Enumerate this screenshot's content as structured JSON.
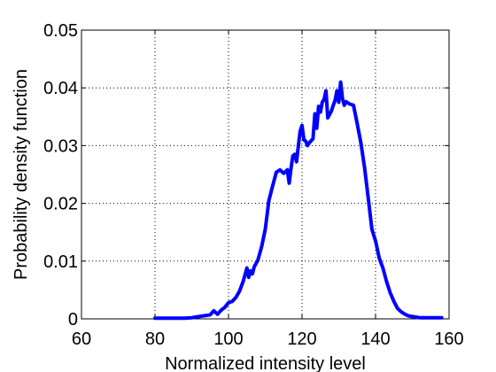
{
  "chart_data": {
    "type": "line",
    "title": "",
    "xlabel": "Normalized intensity level",
    "ylabel": "Probability density function",
    "xlim": [
      60,
      160
    ],
    "ylim": [
      0,
      0.05
    ],
    "xticks": [
      60,
      80,
      100,
      120,
      140,
      160
    ],
    "yticks": [
      0,
      0.01,
      0.02,
      0.03,
      0.04,
      0.05
    ],
    "xtick_labels": [
      "60",
      "80",
      "100",
      "120",
      "140",
      "160"
    ],
    "ytick_labels": [
      "0",
      "0.01",
      "0.02",
      "0.03",
      "0.04",
      "0.05"
    ],
    "grid": true,
    "grid_style": "dotted",
    "legend": "none",
    "series": [
      {
        "color": "#0000ff",
        "x": [
          80,
          85,
          88,
          90,
          91,
          92,
          93,
          94,
          95,
          96,
          97,
          98,
          99,
          100,
          101,
          102,
          103,
          104,
          105,
          105.5,
          106,
          106.5,
          107,
          108,
          109,
          110,
          111,
          112,
          113,
          114,
          115,
          116,
          116.5,
          117,
          117.5,
          118,
          118.5,
          119,
          119.5,
          120,
          120.5,
          121,
          121.5,
          122,
          123,
          123.5,
          124,
          124.5,
          125,
          125.5,
          126,
          126.5,
          127,
          128,
          128.5,
          129,
          129.5,
          130,
          130.5,
          131,
          131.5,
          132,
          133,
          134,
          135,
          136,
          137,
          138,
          139,
          140,
          141,
          142,
          143,
          144,
          145,
          146,
          147,
          148,
          149,
          150,
          152,
          155,
          158
        ],
        "values": [
          0.0001,
          0.0001,
          0.0001,
          0.0002,
          0.0003,
          0.0004,
          0.0005,
          0.0006,
          0.0007,
          0.0014,
          0.0008,
          0.0015,
          0.002,
          0.0028,
          0.003,
          0.0037,
          0.0048,
          0.0065,
          0.0088,
          0.0072,
          0.0083,
          0.0078,
          0.009,
          0.0102,
          0.0125,
          0.0155,
          0.0205,
          0.023,
          0.0254,
          0.0258,
          0.0252,
          0.0258,
          0.0235,
          0.026,
          0.0282,
          0.0285,
          0.0272,
          0.03,
          0.0325,
          0.0335,
          0.031,
          0.0308,
          0.03,
          0.0305,
          0.0312,
          0.0355,
          0.033,
          0.0368,
          0.0358,
          0.0375,
          0.038,
          0.0395,
          0.0348,
          0.036,
          0.037,
          0.0378,
          0.0395,
          0.0375,
          0.041,
          0.0382,
          0.037,
          0.0376,
          0.0372,
          0.037,
          0.0338,
          0.0305,
          0.0262,
          0.021,
          0.0155,
          0.0135,
          0.0105,
          0.0088,
          0.0065,
          0.0045,
          0.003,
          0.0018,
          0.0012,
          0.0008,
          0.0005,
          0.0004,
          0.0002,
          0.0002,
          0.0002
        ]
      }
    ]
  }
}
